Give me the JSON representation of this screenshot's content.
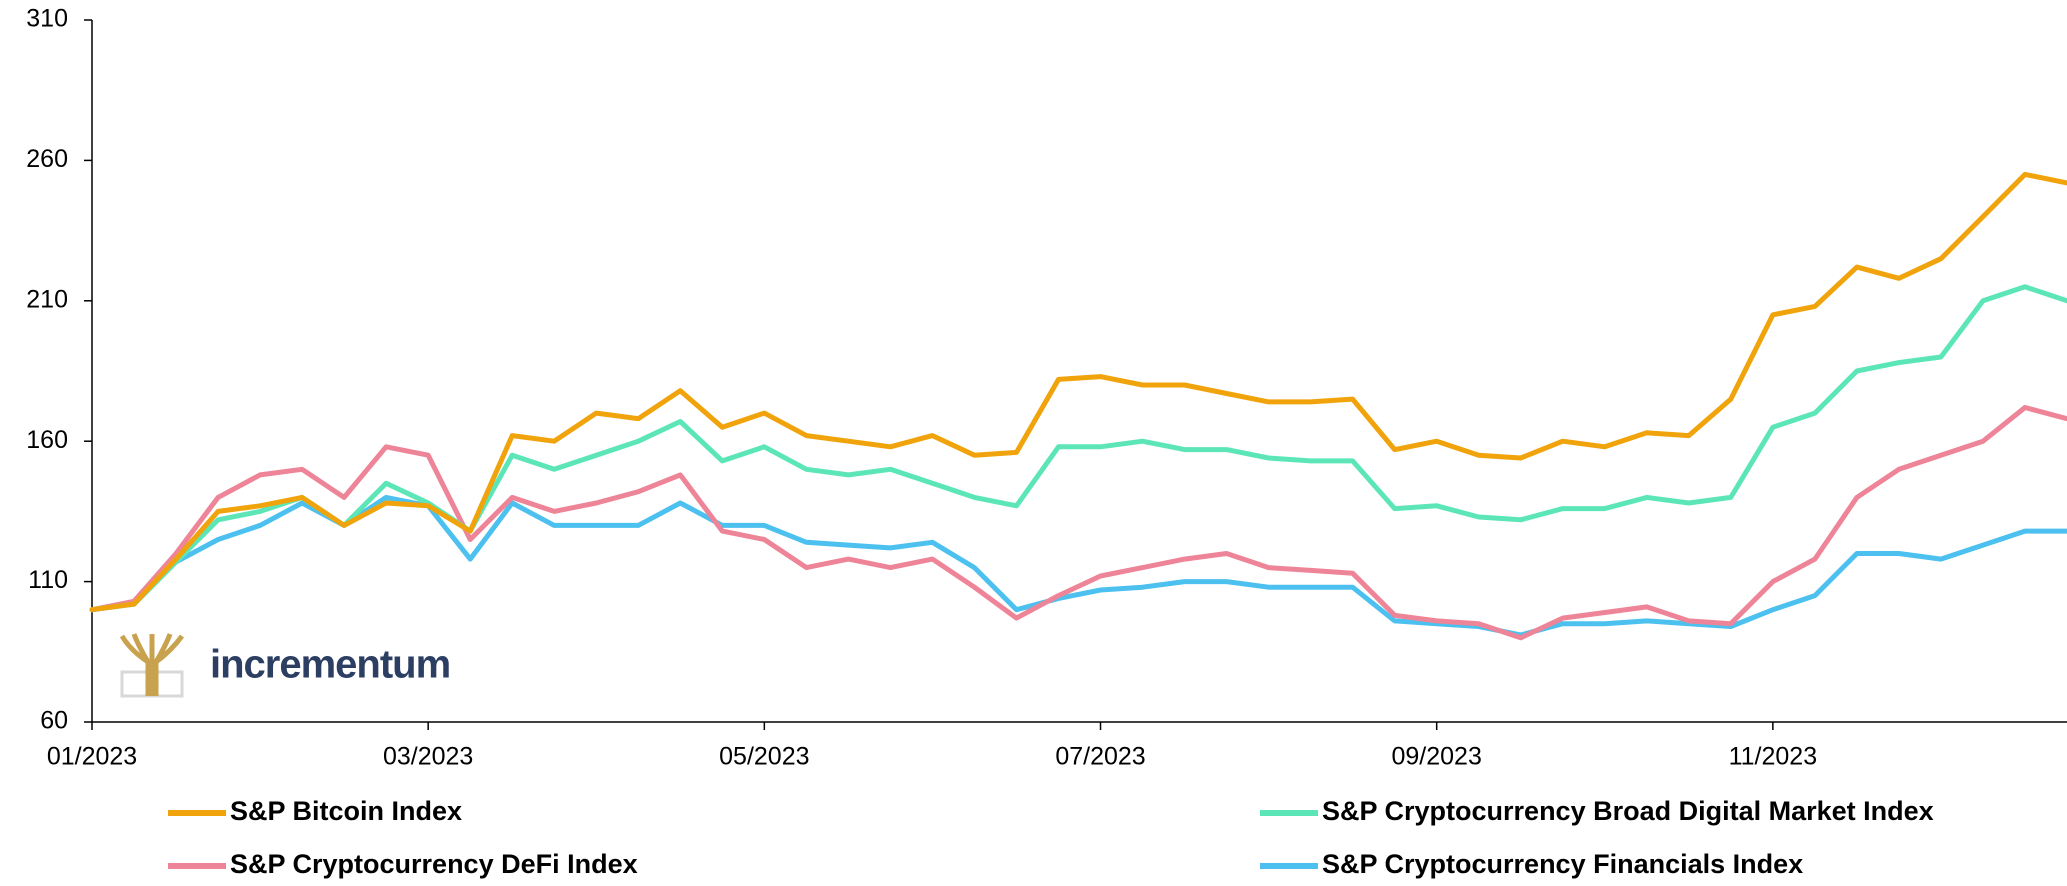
{
  "chart_data": {
    "type": "line",
    "logo": "incrementum",
    "categories": [
      "01/2023",
      null,
      null,
      null,
      null,
      null,
      null,
      null,
      "03/2023",
      null,
      null,
      null,
      null,
      null,
      null,
      null,
      "05/2023",
      null,
      null,
      null,
      null,
      null,
      null,
      null,
      "07/2023",
      null,
      null,
      null,
      null,
      null,
      null,
      null,
      "09/2023",
      null,
      null,
      null,
      null,
      null,
      null,
      null,
      "11/2023",
      null,
      null,
      null,
      null,
      null,
      null,
      null
    ],
    "ylim": [
      60,
      310
    ],
    "yticks": [
      60,
      110,
      160,
      210,
      260,
      310
    ],
    "grid": false,
    "legend": "bottom",
    "series": [
      {
        "name": "S&P Bitcoin Index",
        "color": "#f0a30a",
        "values": [
          100,
          102,
          118,
          135,
          137,
          140,
          130,
          138,
          137,
          128,
          162,
          160,
          170,
          168,
          178,
          165,
          170,
          162,
          160,
          158,
          162,
          155,
          156,
          182,
          183,
          180,
          180,
          177,
          174,
          174,
          175,
          157,
          160,
          155,
          154,
          160,
          158,
          163,
          162,
          175,
          205,
          208,
          222,
          218,
          225,
          240,
          255,
          252
        ]
      },
      {
        "name": "S&P Cryptocurrency Broad Digital Market Index",
        "color": "#5ce6b8",
        "values": [
          100,
          102,
          117,
          132,
          135,
          140,
          130,
          145,
          138,
          128,
          155,
          150,
          155,
          160,
          167,
          153,
          158,
          150,
          148,
          150,
          145,
          140,
          137,
          158,
          158,
          160,
          157,
          157,
          154,
          153,
          153,
          136,
          137,
          133,
          132,
          136,
          136,
          140,
          138,
          140,
          165,
          170,
          185,
          188,
          190,
          210,
          215,
          210
        ]
      },
      {
        "name": "S&P Cryptocurrency DeFi Index",
        "color": "#ee8497",
        "values": [
          100,
          103,
          120,
          140,
          148,
          150,
          140,
          158,
          155,
          125,
          140,
          135,
          138,
          142,
          148,
          128,
          125,
          115,
          118,
          115,
          118,
          108,
          97,
          105,
          112,
          115,
          118,
          120,
          115,
          114,
          113,
          98,
          96,
          95,
          90,
          97,
          99,
          101,
          96,
          95,
          110,
          118,
          140,
          150,
          155,
          160,
          172,
          168
        ]
      },
      {
        "name": "S&P Cryptocurrency Financials Index",
        "color": "#4cc0ef",
        "values": [
          100,
          102,
          117,
          125,
          130,
          138,
          130,
          140,
          137,
          118,
          138,
          130,
          130,
          130,
          138,
          130,
          130,
          124,
          123,
          122,
          124,
          115,
          100,
          104,
          107,
          108,
          110,
          110,
          108,
          108,
          108,
          96,
          95,
          94,
          91,
          95,
          95,
          96,
          95,
          94,
          100,
          105,
          120,
          120,
          118,
          123,
          128,
          128
        ]
      }
    ]
  }
}
